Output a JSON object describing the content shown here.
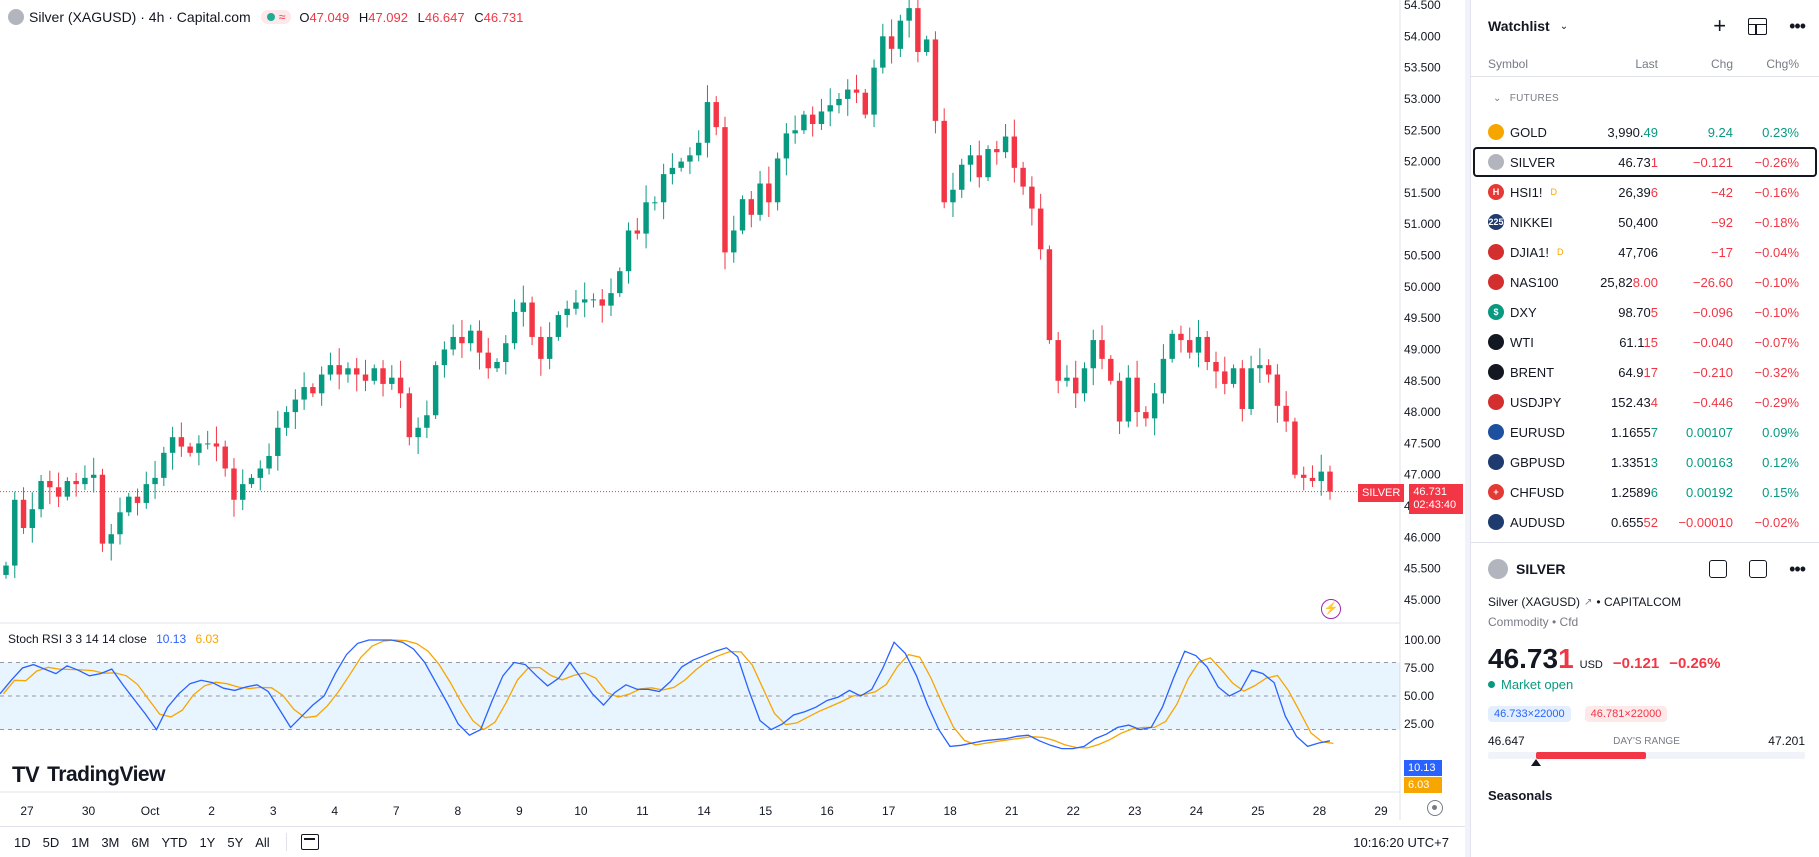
{
  "chart": {
    "symbol_title": "Silver (XAGUSD) · 4h · Capital.com",
    "ohlc": {
      "o_label": "O",
      "o": "47.049",
      "h_label": "H",
      "h": "47.092",
      "l_label": "L",
      "l": "46.647",
      "c_label": "C",
      "c": "46.731"
    },
    "price_axis": [
      "54.500",
      "54.000",
      "53.500",
      "53.000",
      "52.500",
      "52.000",
      "51.500",
      "51.000",
      "50.500",
      "50.000",
      "49.500",
      "49.000",
      "48.500",
      "48.000",
      "47.500",
      "47.000",
      "46.500",
      "46.000",
      "45.500",
      "45.000"
    ],
    "price_tag": {
      "name": "SILVER",
      "price": "46.731",
      "countdown": "02:43:40"
    },
    "current_price": 46.731,
    "rsi": {
      "name": "Stoch RSI 3 3 14 14 close",
      "k": "10.13",
      "d": "6.03",
      "axis": [
        "100.00",
        "75.00",
        "50.00",
        "25.00"
      ],
      "k_color": "#2962ff",
      "d_color": "#f7a600"
    },
    "time_axis": [
      "27",
      "30",
      "Oct",
      "2",
      "3",
      "4",
      "7",
      "8",
      "9",
      "10",
      "11",
      "14",
      "15",
      "16",
      "17",
      "18",
      "21",
      "22",
      "23",
      "24",
      "25",
      "28",
      "29"
    ],
    "logo_text": "TradingView",
    "colors": {
      "up": "#089981",
      "down": "#f23645"
    }
  },
  "chart_data": {
    "type": "candlestick",
    "x_ticks": [
      "27",
      "30",
      "Oct",
      "2",
      "3",
      "4",
      "7",
      "8",
      "9",
      "10",
      "11",
      "14",
      "15",
      "16",
      "17",
      "18",
      "21",
      "22",
      "23",
      "24",
      "25",
      "28",
      "29"
    ],
    "y_range": [
      44.75,
      54.55
    ],
    "closes": [
      45.55,
      46.6,
      46.15,
      46.45,
      46.9,
      46.8,
      46.65,
      46.9,
      46.85,
      46.95,
      47.0,
      45.9,
      46.05,
      46.4,
      46.65,
      46.55,
      46.85,
      46.95,
      47.35,
      47.6,
      47.45,
      47.35,
      47.5,
      47.5,
      47.45,
      47.1,
      46.6,
      46.85,
      46.95,
      47.1,
      47.3,
      47.75,
      48.0,
      48.2,
      48.4,
      48.3,
      48.6,
      48.75,
      48.6,
      48.7,
      48.6,
      48.5,
      48.7,
      48.45,
      48.55,
      48.3,
      47.6,
      47.75,
      47.95,
      48.75,
      49.0,
      49.2,
      49.1,
      49.3,
      48.95,
      48.7,
      48.8,
      49.1,
      49.6,
      49.75,
      49.2,
      48.85,
      49.2,
      49.55,
      49.65,
      49.75,
      49.8,
      49.8,
      49.7,
      49.9,
      50.25,
      50.9,
      50.85,
      51.35,
      51.35,
      51.8,
      51.9,
      52.0,
      52.1,
      52.3,
      52.95,
      52.55,
      50.55,
      50.9,
      51.4,
      51.15,
      51.65,
      51.35,
      52.05,
      52.45,
      52.5,
      52.75,
      52.6,
      52.8,
      52.9,
      53.0,
      53.15,
      53.1,
      52.75,
      53.5,
      54.0,
      53.8,
      54.25,
      54.45,
      53.75,
      53.95,
      52.65,
      51.35,
      51.55,
      51.95,
      52.1,
      51.75,
      52.2,
      52.15,
      52.4,
      51.9,
      51.6,
      51.25,
      50.6,
      49.15,
      48.5,
      48.55,
      48.3,
      48.7,
      49.15,
      48.85,
      48.5,
      47.85,
      48.55,
      48.0,
      47.9,
      48.3,
      48.85,
      49.25,
      49.15,
      48.95,
      49.2,
      48.8,
      48.65,
      48.45,
      48.7,
      48.05,
      48.7,
      48.75,
      48.6,
      48.1,
      47.85,
      47.0,
      46.95,
      46.9,
      47.05,
      46.73
    ],
    "rsi_k": [
      52,
      64,
      75,
      78,
      74,
      70,
      77,
      73,
      68,
      70,
      74,
      60,
      47,
      34,
      20,
      40,
      52,
      61,
      64,
      62,
      57,
      55,
      58,
      60,
      54,
      38,
      22,
      32,
      42,
      50,
      70,
      87,
      97,
      100,
      100,
      100,
      98,
      92,
      80,
      62,
      44,
      25,
      15,
      20,
      45,
      68,
      80,
      78,
      68,
      59,
      66,
      80,
      66,
      52,
      42,
      53,
      60,
      56,
      56,
      54,
      63,
      76,
      82,
      86,
      90,
      93,
      85,
      55,
      28,
      20,
      25,
      33,
      36,
      40,
      46,
      49,
      55,
      50,
      56,
      75,
      98,
      88,
      68,
      42,
      20,
      5,
      6,
      8,
      10,
      11,
      12,
      14,
      15,
      10,
      6,
      3,
      3,
      5,
      12,
      16,
      22,
      24,
      20,
      22,
      40,
      66,
      90,
      86,
      76,
      58,
      50,
      55,
      73,
      70,
      62,
      32,
      14,
      5,
      8,
      10
    ]
  },
  "bottom_bar": {
    "ranges": [
      "1D",
      "5D",
      "1M",
      "3M",
      "6M",
      "YTD",
      "1Y",
      "5Y",
      "All"
    ],
    "clock": "10:16:20 UTC+7"
  },
  "watchlist": {
    "title": "Watchlist",
    "columns": {
      "symbol": "Symbol",
      "last": "Last",
      "chg": "Chg",
      "chgp": "Chg%"
    },
    "section": "FUTURES",
    "rows": [
      {
        "symbol": "GOLD",
        "last_main": "3,990.",
        "last_tick": "49",
        "chg": "9.24",
        "chgp": "0.23%",
        "dir": "pos",
        "icon_color": "#f7a600",
        "icon_text": "",
        "sup": ""
      },
      {
        "symbol": "SILVER",
        "last_main": "46.73",
        "last_tick": "1",
        "chg": "−0.121",
        "chgp": "−0.26%",
        "dir": "neg",
        "icon_color": "#b2b5be",
        "icon_text": "",
        "sup": ""
      },
      {
        "symbol": "HSI1!",
        "last_main": "26,39",
        "last_tick": "6",
        "chg": "−42",
        "chgp": "−0.16%",
        "dir": "neg",
        "icon_color": "#e53935",
        "icon_text": "H",
        "sup": "D"
      },
      {
        "symbol": "NIKKEI",
        "last_main": "50,400",
        "last_tick": "",
        "chg": "−92",
        "chgp": "−0.18%",
        "dir": "neg",
        "icon_color": "#1e3a6e",
        "icon_text": "225",
        "sup": ""
      },
      {
        "symbol": "DJIA1!",
        "last_main": "47,706",
        "last_tick": "",
        "chg": "−17",
        "chgp": "−0.04%",
        "dir": "neg",
        "icon_color": "#d32f2f",
        "icon_text": "",
        "sup": "D"
      },
      {
        "symbol": "NAS100",
        "last_main": "25,82",
        "last_tick": "8.00",
        "chg": "−26.60",
        "chgp": "−0.10%",
        "dir": "neg",
        "icon_color": "#d32f2f",
        "icon_text": "",
        "sup": ""
      },
      {
        "symbol": "DXY",
        "last_main": "98.70",
        "last_tick": "5",
        "chg": "−0.096",
        "chgp": "−0.10%",
        "dir": "neg",
        "icon_color": "#089981",
        "icon_text": "$",
        "sup": ""
      },
      {
        "symbol": "WTI",
        "last_main": "61.1",
        "last_tick": "15",
        "chg": "−0.040",
        "chgp": "−0.07%",
        "dir": "neg",
        "icon_color": "#131722",
        "icon_text": "",
        "sup": ""
      },
      {
        "symbol": "BRENT",
        "last_main": "64.9",
        "last_tick": "17",
        "chg": "−0.210",
        "chgp": "−0.32%",
        "dir": "neg",
        "icon_color": "#131722",
        "icon_text": "",
        "sup": ""
      },
      {
        "symbol": "USDJPY",
        "last_main": "152.43",
        "last_tick": "4",
        "chg": "−0.446",
        "chgp": "−0.29%",
        "dir": "neg",
        "icon_color": "#d32f2f",
        "icon_text": "",
        "sup": ""
      },
      {
        "symbol": "EURUSD",
        "last_main": "1.1655",
        "last_tick": "7",
        "chg": "0.00107",
        "chgp": "0.09%",
        "dir": "pos",
        "icon_color": "#1e50a0",
        "icon_text": "",
        "sup": ""
      },
      {
        "symbol": "GBPUSD",
        "last_main": "1.3351",
        "last_tick": "3",
        "chg": "0.00163",
        "chgp": "0.12%",
        "dir": "pos",
        "icon_color": "#1e3a6e",
        "icon_text": "",
        "sup": ""
      },
      {
        "symbol": "CHFUSD",
        "last_main": "1.2589",
        "last_tick": "6",
        "chg": "0.00192",
        "chgp": "0.15%",
        "dir": "pos",
        "icon_color": "#e53935",
        "icon_text": "+",
        "sup": ""
      },
      {
        "symbol": "AUDUSD",
        "last_main": "0.655",
        "last_tick": "52",
        "chg": "−0.00010",
        "chgp": "−0.02%",
        "dir": "neg",
        "icon_color": "#1e3a6e",
        "icon_text": "",
        "sup": ""
      }
    ]
  },
  "detail": {
    "symbol": "SILVER",
    "full_name": "Silver (XAGUSD)",
    "exchange": "• CAPITALCOM",
    "category": "Commodity • Cfd",
    "price_main": "46.73",
    "price_tick": "1",
    "currency": "USD",
    "change": "−0.121",
    "change_pct": "−0.26%",
    "market_status": "Market open",
    "bid": "46.733×22000",
    "ask": "46.781×22000",
    "day_low": "46.647",
    "day_high": "47.201",
    "range_label": "DAY'S RANGE",
    "range_position": 0.15,
    "seasonals": "Seasonals"
  }
}
